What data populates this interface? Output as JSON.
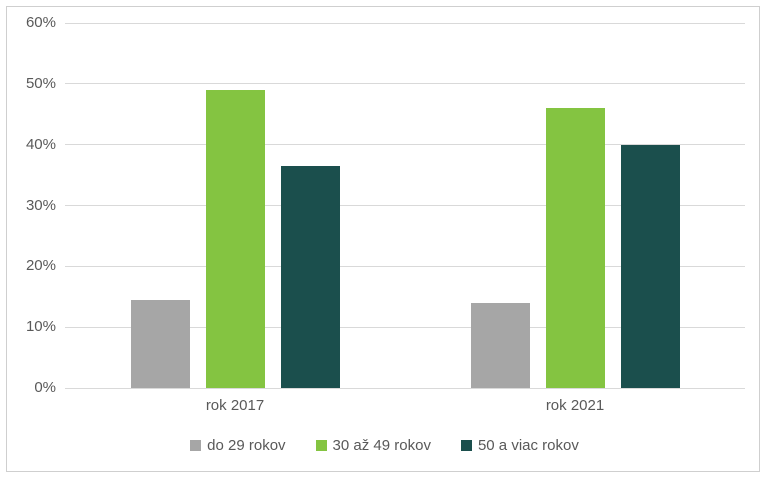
{
  "chart_data": {
    "type": "bar",
    "categories": [
      "rok 2017",
      "rok 2021"
    ],
    "series": [
      {
        "name": "do 29 rokov",
        "color": "#A6A6A6",
        "values": [
          14.5,
          14
        ]
      },
      {
        "name": "30 až 49 rokov",
        "color": "#84C441",
        "values": [
          49,
          46
        ]
      },
      {
        "name": "50 a viac rokov",
        "color": "#1B4F4D",
        "values": [
          36.5,
          40
        ]
      }
    ],
    "title": "",
    "xlabel": "",
    "ylabel": "",
    "ylim": [
      0,
      60
    ],
    "yticks": [
      "0%",
      "10%",
      "20%",
      "30%",
      "40%",
      "50%",
      "60%"
    ],
    "grid": true,
    "legend_position": "bottom",
    "colors": {
      "gridline": "#D9D9D9",
      "axis_text": "#595959",
      "frame_border": "#CFCFCF",
      "background": "#FFFFFF"
    }
  }
}
